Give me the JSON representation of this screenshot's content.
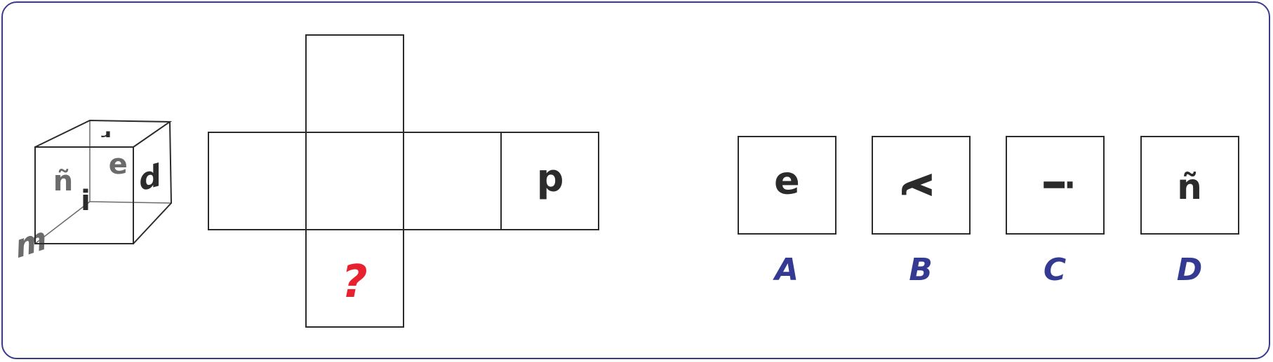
{
  "colors": {
    "frame": "#3a3a8c",
    "ink": "#2b2b2b",
    "grey": "#6b6b6b",
    "accent": "#e8212e",
    "label": "#343a92"
  },
  "cube": {
    "top": "ɹ",
    "front_left": "ñ",
    "front_center": "ə",
    "front_bottom": "i",
    "right": "d",
    "hidden_bottom": "m"
  },
  "net": {
    "right_face": "d",
    "question": "?"
  },
  "options": [
    {
      "letter": "A",
      "glyph": "ə"
    },
    {
      "letter": "B",
      "glyph": "λ"
    },
    {
      "letter": "C",
      "glyph": "i"
    },
    {
      "letter": "D",
      "glyph": "ñ"
    }
  ]
}
